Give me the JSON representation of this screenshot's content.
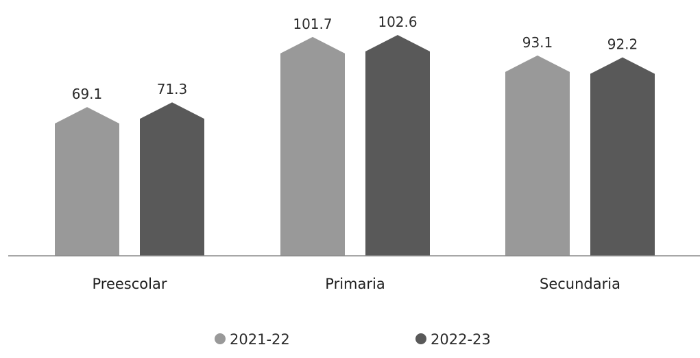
{
  "chart_data": {
    "type": "bar",
    "categories": [
      "Preescolar",
      "Primaria",
      "Secundaria"
    ],
    "series": [
      {
        "name": "2021-22",
        "values": [
          69.1,
          101.7,
          93.1
        ],
        "color": "#999999"
      },
      {
        "name": "2022-23",
        "values": [
          71.3,
          102.6,
          92.2
        ],
        "color": "#595959"
      }
    ],
    "value_labels": [
      [
        "69.1",
        "101.7",
        "93.1"
      ],
      [
        "71.3",
        "102.6",
        "92.2"
      ]
    ],
    "title": "",
    "xlabel": "",
    "ylabel": "",
    "ylim": [
      0,
      102.6
    ],
    "grid": false,
    "legend_position": "bottom-center",
    "axis_color": "#8a8a8a"
  }
}
